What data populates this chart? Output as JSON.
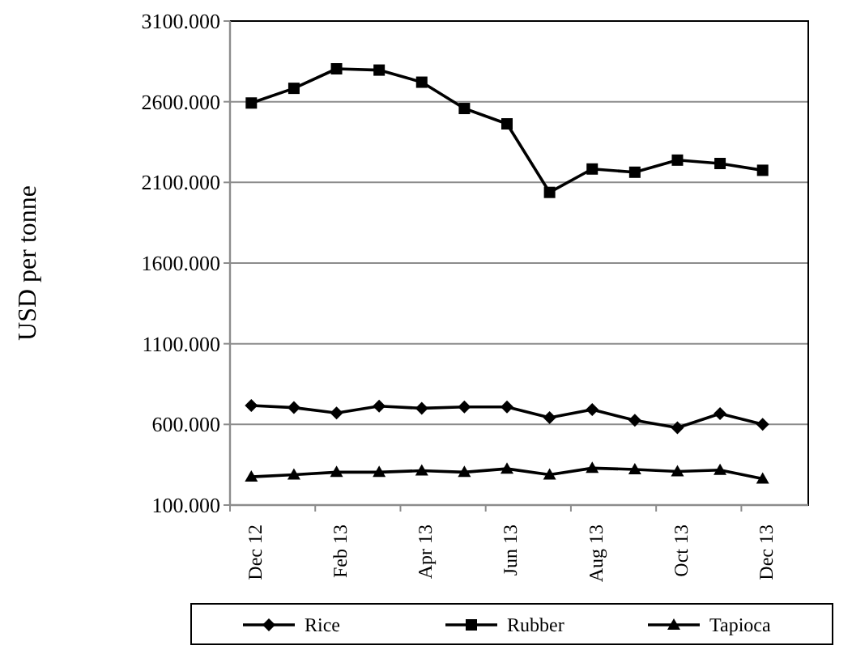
{
  "chart_data": {
    "type": "line",
    "ylabel": "USD per tonne",
    "categories": [
      "Dec 12",
      null,
      "Feb 13",
      null,
      "Apr 13",
      null,
      "Jun 13",
      null,
      "Aug 13",
      null,
      "Oct 13",
      null,
      "Dec 13"
    ],
    "series": [
      {
        "name": "Rice",
        "color": "#000000",
        "marker": "diamond",
        "values": [
          717,
          704,
          671,
          713,
          700,
          708,
          708,
          642,
          692,
          625,
          579,
          667,
          600
        ]
      },
      {
        "name": "Rubber",
        "color": "#000000",
        "marker": "square",
        "values": [
          2592,
          2683,
          2804,
          2796,
          2721,
          2558,
          2463,
          2038,
          2183,
          2163,
          2238,
          2217,
          2175
        ]
      },
      {
        "name": "Tapioca",
        "color": "#000000",
        "marker": "triangle",
        "values": [
          275,
          288,
          304,
          304,
          313,
          304,
          325,
          288,
          329,
          321,
          308,
          317,
          263
        ]
      }
    ],
    "ylim": [
      100,
      3100
    ],
    "yticks": [
      {
        "value": 100,
        "label": "100.000"
      },
      {
        "value": 600,
        "label": "600.000"
      },
      {
        "value": 1100,
        "label": "1100.000"
      },
      {
        "value": 1600,
        "label": "1600.000"
      },
      {
        "value": 2100,
        "label": "2100.000"
      },
      {
        "value": 2600,
        "label": "2600.000"
      },
      {
        "value": 3100,
        "label": "3100.000"
      }
    ],
    "grid": "y",
    "legend": "bottom",
    "line_style": "solid"
  }
}
